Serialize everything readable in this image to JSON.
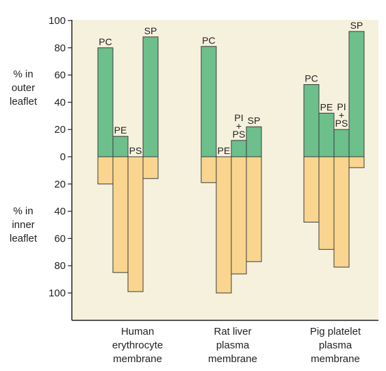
{
  "chart_data": {
    "type": "bar",
    "subtype": "diverging-stacked",
    "y_ticks": [
      "100",
      "80",
      "60",
      "40",
      "20",
      "0",
      "20",
      "40",
      "60",
      "80",
      "100"
    ],
    "ylim": [
      -100,
      100
    ],
    "outer_label": [
      "% in",
      "outer",
      "leaflet"
    ],
    "inner_label": [
      "% in",
      "inner",
      "leaflet"
    ],
    "colors": {
      "outer": "#6dbf8c",
      "inner": "#f9d58f",
      "background": "#f5f1dd",
      "stroke": "#3a3a3a"
    },
    "grid": false,
    "groups": [
      {
        "label_lines": [
          "Human",
          "erythrocyte",
          "membrane"
        ],
        "bars": [
          {
            "lines": [
              "PC"
            ],
            "outer": 80,
            "inner": 20
          },
          {
            "lines": [
              "PE"
            ],
            "outer": 15,
            "inner": 85
          },
          {
            "lines": [
              "PS"
            ],
            "outer": 0,
            "inner": 99
          },
          {
            "lines": [
              "SP"
            ],
            "outer": 88,
            "inner": 16
          }
        ]
      },
      {
        "label_lines": [
          "Rat liver",
          "plasma",
          "membrane"
        ],
        "bars": [
          {
            "lines": [
              "PC"
            ],
            "outer": 81,
            "inner": 19
          },
          {
            "lines": [
              "PE"
            ],
            "outer": 0,
            "inner": 100
          },
          {
            "lines": [
              "PI",
              "+",
              "PS"
            ],
            "outer": 12,
            "inner": 86
          },
          {
            "lines": [
              "SP"
            ],
            "outer": 22,
            "inner": 77
          }
        ]
      },
      {
        "label_lines": [
          "Pig platelet",
          "plasma",
          "membrane"
        ],
        "bars": [
          {
            "lines": [
              "PC"
            ],
            "outer": 53,
            "inner": 48
          },
          {
            "lines": [
              "PE"
            ],
            "outer": 32,
            "inner": 68
          },
          {
            "lines": [
              "PI",
              "+",
              "PS"
            ],
            "outer": 20,
            "inner": 81
          },
          {
            "lines": [
              "SP"
            ],
            "outer": 92,
            "inner": 8
          }
        ]
      }
    ]
  }
}
